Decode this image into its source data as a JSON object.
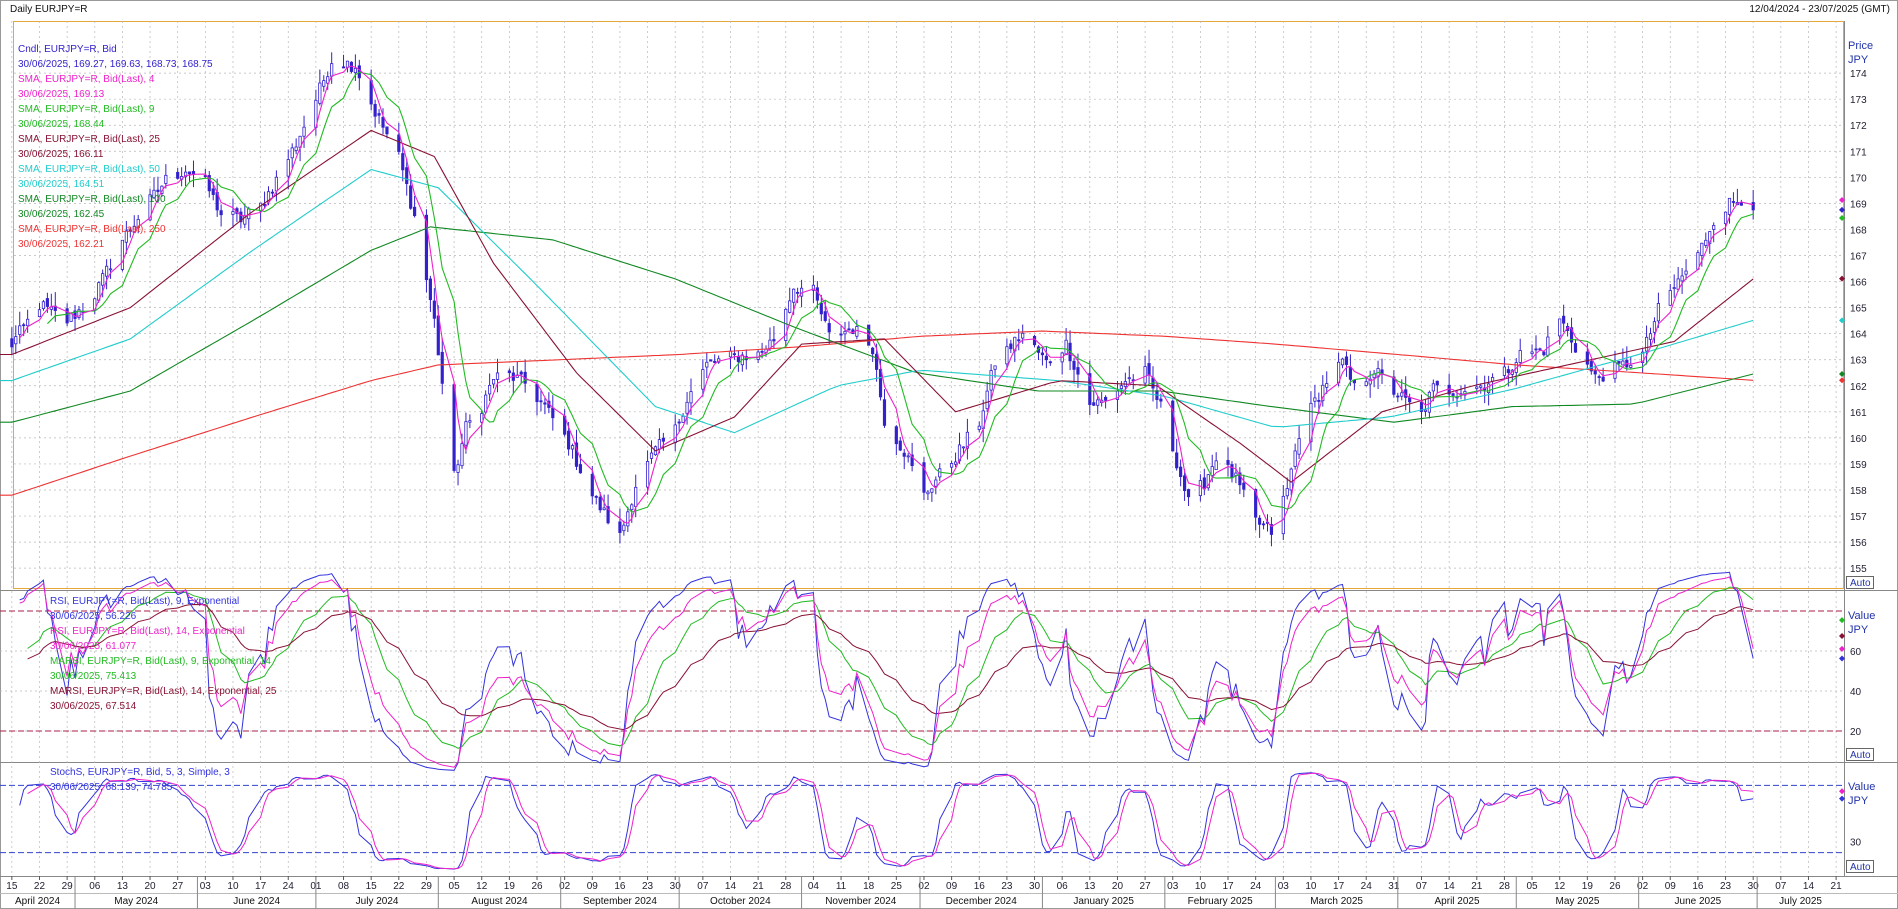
{
  "header": {
    "title": "Daily EURJPY=R",
    "range": "12/04/2024 - 23/07/2025 (GMT)"
  },
  "colors": {
    "candle": "#3322cc",
    "sma4": "#ee22cc",
    "sma9": "#22bb22",
    "sma25": "#881133",
    "sma50": "#22cccc",
    "sma100": "#118822",
    "sma250": "#ee3333",
    "rsi9": "#3333dd",
    "rsi14": "#ee22cc",
    "marsi9": "#22bb22",
    "marsi14": "#881133",
    "stochK": "#3333dd",
    "stochD": "#ee22cc",
    "frame": "#e8a838",
    "grid": "#b8b8b8",
    "hline": "#aa2244"
  },
  "price_panel": {
    "axis_title": "Price",
    "axis_unit": "JPY",
    "auto": "Auto",
    "legend": [
      {
        "label": "Cndl, EURJPY=R, Bid",
        "value": "30/06/2025, 169.27, 169.63, 168.73, 168.75",
        "color_key": "candle"
      },
      {
        "label": "SMA, EURJPY=R, Bid(Last),  4",
        "value": "30/06/2025, 169.13",
        "color_key": "sma4"
      },
      {
        "label": "SMA, EURJPY=R, Bid(Last),  9",
        "value": "30/06/2025, 168.44",
        "color_key": "sma9"
      },
      {
        "label": "SMA, EURJPY=R, Bid(Last),  25",
        "value": "30/06/2025, 166.11",
        "color_key": "sma25"
      },
      {
        "label": "SMA, EURJPY=R, Bid(Last),  50",
        "value": "30/06/2025, 164.51",
        "color_key": "sma50"
      },
      {
        "label": "SMA, EURJPY=R, Bid(Last),  100",
        "value": "30/06/2025, 162.45",
        "color_key": "sma100"
      },
      {
        "label": "SMA, EURJPY=R, Bid(Last),  250",
        "value": "30/06/2025, 162.21",
        "color_key": "sma250"
      }
    ]
  },
  "rsi_panel": {
    "axis_title": "Value",
    "axis_unit": "JPY",
    "auto": "Auto",
    "legend": [
      {
        "label": "RSI, EURJPY=R, Bid(Last),  9, Exponential",
        "value": "30/06/2025, 56.226",
        "color_key": "rsi9"
      },
      {
        "label": "RSI, EURJPY=R, Bid(Last),  14, Exponential",
        "value": "30/06/2025, 61.077",
        "color_key": "rsi14"
      },
      {
        "label": "MARSI, EURJPY=R, Bid(Last),  9, Exponential, 14",
        "value": "30/06/2025, 75.413",
        "color_key": "marsi9"
      },
      {
        "label": "MARSI, EURJPY=R, Bid(Last),  14, Exponential, 25",
        "value": "30/06/2025, 67.514",
        "color_key": "marsi14"
      }
    ]
  },
  "stoch_panel": {
    "axis_title": "Value",
    "axis_unit": "JPY",
    "auto": "Auto",
    "legend": [
      {
        "label": "StochS, EURJPY=R, Bid,  5, 3, Simple, 3",
        "value": "30/06/2025, 68.139, 74.785",
        "color_key": "stochK"
      }
    ]
  },
  "chart_data": {
    "type": "candlestick",
    "title": "Daily EURJPY=R",
    "price_ylim": [
      154.2,
      176
    ],
    "price_ticks": [
      155,
      156,
      157,
      158,
      159,
      160,
      161,
      162,
      163,
      164,
      165,
      166,
      167,
      168,
      169,
      170,
      171,
      172,
      173,
      174
    ],
    "rsi_ylim": [
      5,
      90
    ],
    "rsi_ticks": [
      20,
      40,
      60
    ],
    "rsi_hlines": [
      20,
      80
    ],
    "stoch_ylim": [
      0,
      100
    ],
    "stoch_ticks": [
      30
    ],
    "stoch_hlines": [
      20,
      80
    ],
    "x_start": "2024-04-12",
    "x_end": "2025-07-23",
    "x_ticks": [
      "15",
      "22",
      "29",
      "06",
      "13",
      "20",
      "27",
      "03",
      "10",
      "17",
      "24",
      "01",
      "08",
      "15",
      "22",
      "29",
      "05",
      "12",
      "19",
      "26",
      "02",
      "09",
      "16",
      "23",
      "30",
      "07",
      "14",
      "21",
      "28",
      "04",
      "11",
      "18",
      "25",
      "02",
      "09",
      "16",
      "23",
      "30",
      "06",
      "13",
      "20",
      "27",
      "03",
      "10",
      "17",
      "24",
      "03",
      "10",
      "17",
      "24",
      "31",
      "07",
      "14",
      "21",
      "28",
      "05",
      "12",
      "19",
      "26",
      "02",
      "09",
      "16",
      "23",
      "30",
      "07",
      "14",
      "21"
    ],
    "months": [
      "April 2024",
      "May 2024",
      "June 2024",
      "July 2024",
      "August 2024",
      "September 2024",
      "October 2024",
      "November 2024",
      "December 2024",
      "January 2025",
      "February 2025",
      "March 2025",
      "April 2025",
      "May 2025",
      "June 2025",
      "July 2025"
    ],
    "price_anchors": [
      [
        "2024-04-15",
        163.6
      ],
      [
        "2024-04-22",
        165.1
      ],
      [
        "2024-04-29",
        164.5
      ],
      [
        "2024-05-03",
        165.0
      ],
      [
        "2024-05-06",
        165.5
      ],
      [
        "2024-05-13",
        167.6
      ],
      [
        "2024-05-20",
        169.1
      ],
      [
        "2024-05-24",
        169.9
      ],
      [
        "2024-05-29",
        170.3
      ],
      [
        "2024-06-03",
        169.8
      ],
      [
        "2024-06-07",
        168.6
      ],
      [
        "2024-06-12",
        168.4
      ],
      [
        "2024-06-17",
        168.9
      ],
      [
        "2024-06-21",
        169.9
      ],
      [
        "2024-06-26",
        171.3
      ],
      [
        "2024-07-01",
        173.0
      ],
      [
        "2024-07-05",
        174.5
      ],
      [
        "2024-07-11",
        174.3
      ],
      [
        "2024-07-16",
        172.5
      ],
      [
        "2024-07-22",
        170.8
      ],
      [
        "2024-07-26",
        168.5
      ],
      [
        "2024-07-31",
        164.5
      ],
      [
        "2024-08-05",
        158.5
      ],
      [
        "2024-08-08",
        160.4
      ],
      [
        "2024-08-12",
        161.2
      ],
      [
        "2024-08-15",
        162.3
      ],
      [
        "2024-08-19",
        162.4
      ],
      [
        "2024-08-23",
        162.1
      ],
      [
        "2024-08-28",
        161.2
      ],
      [
        "2024-09-03",
        159.8
      ],
      [
        "2024-09-09",
        157.8
      ],
      [
        "2024-09-16",
        156.2
      ],
      [
        "2024-09-20",
        158.2
      ],
      [
        "2024-09-25",
        159.5
      ],
      [
        "2024-09-30",
        160.3
      ],
      [
        "2024-10-03",
        161.5
      ],
      [
        "2024-10-08",
        162.8
      ],
      [
        "2024-10-14",
        163.1
      ],
      [
        "2024-10-21",
        163.2
      ],
      [
        "2024-10-25",
        163.8
      ],
      [
        "2024-10-30",
        165.8
      ],
      [
        "2024-11-04",
        165.6
      ],
      [
        "2024-11-08",
        163.9
      ],
      [
        "2024-11-14",
        164.2
      ],
      [
        "2024-11-19",
        163.5
      ],
      [
        "2024-11-22",
        160.7
      ],
      [
        "2024-11-27",
        159.5
      ],
      [
        "2024-12-02",
        157.8
      ],
      [
        "2024-12-05",
        158.4
      ],
      [
        "2024-12-10",
        159.3
      ],
      [
        "2024-12-16",
        160.6
      ],
      [
        "2024-12-20",
        162.9
      ],
      [
        "2024-12-27",
        164.0
      ],
      [
        "2025-01-02",
        162.9
      ],
      [
        "2025-01-07",
        163.6
      ],
      [
        "2025-01-13",
        161.3
      ],
      [
        "2025-01-17",
        161.4
      ],
      [
        "2025-01-22",
        162.2
      ],
      [
        "2025-01-27",
        162.5
      ],
      [
        "2025-01-31",
        161.2
      ],
      [
        "2025-02-04",
        159.1
      ],
      [
        "2025-02-07",
        157.5
      ],
      [
        "2025-02-11",
        158.3
      ],
      [
        "2025-02-14",
        159.3
      ],
      [
        "2025-02-19",
        158.4
      ],
      [
        "2025-02-24",
        156.8
      ],
      [
        "2025-02-28",
        156.4
      ],
      [
        "2025-03-04",
        158.0
      ],
      [
        "2025-03-07",
        160.2
      ],
      [
        "2025-03-11",
        161.4
      ],
      [
        "2025-03-14",
        162.2
      ],
      [
        "2025-03-18",
        162.9
      ],
      [
        "2025-03-21",
        161.9
      ],
      [
        "2025-03-26",
        162.6
      ],
      [
        "2025-03-31",
        161.8
      ],
      [
        "2025-04-03",
        161.4
      ],
      [
        "2025-04-07",
        160.9
      ],
      [
        "2025-04-10",
        161.9
      ],
      [
        "2025-04-16",
        161.8
      ],
      [
        "2025-04-22",
        162.0
      ],
      [
        "2025-04-28",
        162.5
      ],
      [
        "2025-05-02",
        163.2
      ],
      [
        "2025-05-08",
        163.4
      ],
      [
        "2025-05-12",
        164.6
      ],
      [
        "2025-05-16",
        163.5
      ],
      [
        "2025-05-21",
        162.3
      ],
      [
        "2025-05-27",
        162.7
      ],
      [
        "2025-06-02",
        163.2
      ],
      [
        "2025-06-06",
        164.9
      ],
      [
        "2025-06-11",
        166.0
      ],
      [
        "2025-06-16",
        167.0
      ],
      [
        "2025-06-20",
        168.4
      ],
      [
        "2025-06-24",
        169.0
      ],
      [
        "2025-06-27",
        169.2
      ],
      [
        "2025-06-30",
        168.75
      ]
    ],
    "sma25_anchors": [
      [
        "2024-04-15",
        163.2
      ],
      [
        "2024-05-15",
        165.0
      ],
      [
        "2024-06-15",
        168.7
      ],
      [
        "2024-07-15",
        171.8
      ],
      [
        "2024-07-31",
        170.8
      ],
      [
        "2024-08-15",
        166.7
      ],
      [
        "2024-09-05",
        162.5
      ],
      [
        "2024-09-25",
        159.5
      ],
      [
        "2024-10-15",
        160.8
      ],
      [
        "2024-11-01",
        163.6
      ],
      [
        "2024-11-22",
        163.8
      ],
      [
        "2024-12-10",
        161.0
      ],
      [
        "2025-01-05",
        162.2
      ],
      [
        "2025-01-30",
        162.0
      ],
      [
        "2025-02-20",
        159.8
      ],
      [
        "2025-03-05",
        158.3
      ],
      [
        "2025-03-28",
        161.0
      ],
      [
        "2025-04-20",
        162.0
      ],
      [
        "2025-05-20",
        163.0
      ],
      [
        "2025-06-10",
        163.7
      ],
      [
        "2025-06-30",
        166.1
      ]
    ],
    "sma50_anchors": [
      [
        "2024-04-15",
        162.2
      ],
      [
        "2024-05-15",
        163.8
      ],
      [
        "2024-06-15",
        167.2
      ],
      [
        "2024-07-15",
        170.3
      ],
      [
        "2024-08-01",
        169.6
      ],
      [
        "2024-08-25",
        166.0
      ],
      [
        "2024-09-25",
        161.2
      ],
      [
        "2024-10-15",
        160.2
      ],
      [
        "2024-11-10",
        162.0
      ],
      [
        "2024-12-01",
        162.6
      ],
      [
        "2025-01-05",
        162.2
      ],
      [
        "2025-02-01",
        161.6
      ],
      [
        "2025-03-01",
        160.4
      ],
      [
        "2025-03-30",
        160.8
      ],
      [
        "2025-05-01",
        161.9
      ],
      [
        "2025-06-01",
        163.2
      ],
      [
        "2025-06-30",
        164.51
      ]
    ],
    "sma100_anchors": [
      [
        "2024-04-15",
        160.6
      ],
      [
        "2024-05-15",
        161.8
      ],
      [
        "2024-06-15",
        164.5
      ],
      [
        "2024-07-15",
        167.2
      ],
      [
        "2024-07-30",
        168.1
      ],
      [
        "2024-08-30",
        167.6
      ],
      [
        "2024-09-30",
        166.1
      ],
      [
        "2024-10-31",
        164.2
      ],
      [
        "2024-11-30",
        162.5
      ],
      [
        "2024-12-31",
        161.8
      ],
      [
        "2025-01-31",
        161.8
      ],
      [
        "2025-02-28",
        161.2
      ],
      [
        "2025-03-31",
        160.6
      ],
      [
        "2025-04-30",
        161.2
      ],
      [
        "2025-05-31",
        161.3
      ],
      [
        "2025-06-30",
        162.45
      ]
    ],
    "sma250_anchors": [
      [
        "2024-04-15",
        157.8
      ],
      [
        "2024-05-15",
        159.3
      ],
      [
        "2024-06-15",
        160.8
      ],
      [
        "2024-07-15",
        162.2
      ],
      [
        "2024-08-01",
        162.8
      ],
      [
        "2024-09-01",
        163.0
      ],
      [
        "2024-10-01",
        163.2
      ],
      [
        "2024-11-01",
        163.5
      ],
      [
        "2024-12-01",
        163.9
      ],
      [
        "2025-01-01",
        164.1
      ],
      [
        "2025-02-01",
        163.9
      ],
      [
        "2025-03-01",
        163.6
      ],
      [
        "2025-04-01",
        163.2
      ],
      [
        "2025-05-01",
        162.8
      ],
      [
        "2025-06-01",
        162.5
      ],
      [
        "2025-06-30",
        162.21
      ]
    ],
    "end_markers": {
      "sma4": 169.13,
      "candle": 168.75,
      "sma9": 168.44,
      "sma25": 166.11,
      "sma50": 164.51,
      "sma100": 162.45,
      "sma250": 162.21
    },
    "rsi_end": {
      "rsi9": 56.226,
      "rsi14": 61.077,
      "marsi9": 75.413,
      "marsi14": 67.514
    },
    "stoch_end": {
      "k": 68.139,
      "d": 74.785
    }
  }
}
